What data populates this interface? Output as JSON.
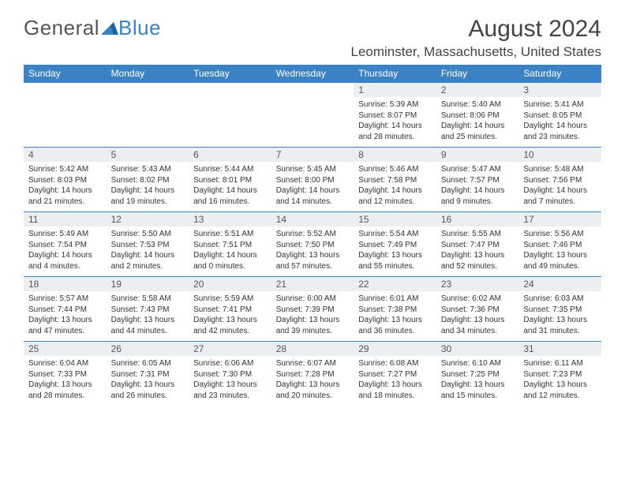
{
  "logo": {
    "text1": "General",
    "text2": "Blue"
  },
  "title": "August 2024",
  "location": "Leominster, Massachusetts, United States",
  "colors": {
    "header_bg": "#3b82c4",
    "header_text": "#ffffff",
    "daynum_bg": "#eceff1",
    "text": "#444444",
    "row_border": "#3b82c4"
  },
  "weekdays": [
    "Sunday",
    "Monday",
    "Tuesday",
    "Wednesday",
    "Thursday",
    "Friday",
    "Saturday"
  ],
  "weeks": [
    [
      null,
      null,
      null,
      null,
      {
        "n": "1",
        "sr": "5:39 AM",
        "ss": "8:07 PM",
        "dl": "14 hours and 28 minutes."
      },
      {
        "n": "2",
        "sr": "5:40 AM",
        "ss": "8:06 PM",
        "dl": "14 hours and 25 minutes."
      },
      {
        "n": "3",
        "sr": "5:41 AM",
        "ss": "8:05 PM",
        "dl": "14 hours and 23 minutes."
      }
    ],
    [
      {
        "n": "4",
        "sr": "5:42 AM",
        "ss": "8:03 PM",
        "dl": "14 hours and 21 minutes."
      },
      {
        "n": "5",
        "sr": "5:43 AM",
        "ss": "8:02 PM",
        "dl": "14 hours and 19 minutes."
      },
      {
        "n": "6",
        "sr": "5:44 AM",
        "ss": "8:01 PM",
        "dl": "14 hours and 16 minutes."
      },
      {
        "n": "7",
        "sr": "5:45 AM",
        "ss": "8:00 PM",
        "dl": "14 hours and 14 minutes."
      },
      {
        "n": "8",
        "sr": "5:46 AM",
        "ss": "7:58 PM",
        "dl": "14 hours and 12 minutes."
      },
      {
        "n": "9",
        "sr": "5:47 AM",
        "ss": "7:57 PM",
        "dl": "14 hours and 9 minutes."
      },
      {
        "n": "10",
        "sr": "5:48 AM",
        "ss": "7:56 PM",
        "dl": "14 hours and 7 minutes."
      }
    ],
    [
      {
        "n": "11",
        "sr": "5:49 AM",
        "ss": "7:54 PM",
        "dl": "14 hours and 4 minutes."
      },
      {
        "n": "12",
        "sr": "5:50 AM",
        "ss": "7:53 PM",
        "dl": "14 hours and 2 minutes."
      },
      {
        "n": "13",
        "sr": "5:51 AM",
        "ss": "7:51 PM",
        "dl": "14 hours and 0 minutes."
      },
      {
        "n": "14",
        "sr": "5:52 AM",
        "ss": "7:50 PM",
        "dl": "13 hours and 57 minutes."
      },
      {
        "n": "15",
        "sr": "5:54 AM",
        "ss": "7:49 PM",
        "dl": "13 hours and 55 minutes."
      },
      {
        "n": "16",
        "sr": "5:55 AM",
        "ss": "7:47 PM",
        "dl": "13 hours and 52 minutes."
      },
      {
        "n": "17",
        "sr": "5:56 AM",
        "ss": "7:46 PM",
        "dl": "13 hours and 49 minutes."
      }
    ],
    [
      {
        "n": "18",
        "sr": "5:57 AM",
        "ss": "7:44 PM",
        "dl": "13 hours and 47 minutes."
      },
      {
        "n": "19",
        "sr": "5:58 AM",
        "ss": "7:43 PM",
        "dl": "13 hours and 44 minutes."
      },
      {
        "n": "20",
        "sr": "5:59 AM",
        "ss": "7:41 PM",
        "dl": "13 hours and 42 minutes."
      },
      {
        "n": "21",
        "sr": "6:00 AM",
        "ss": "7:39 PM",
        "dl": "13 hours and 39 minutes."
      },
      {
        "n": "22",
        "sr": "6:01 AM",
        "ss": "7:38 PM",
        "dl": "13 hours and 36 minutes."
      },
      {
        "n": "23",
        "sr": "6:02 AM",
        "ss": "7:36 PM",
        "dl": "13 hours and 34 minutes."
      },
      {
        "n": "24",
        "sr": "6:03 AM",
        "ss": "7:35 PM",
        "dl": "13 hours and 31 minutes."
      }
    ],
    [
      {
        "n": "25",
        "sr": "6:04 AM",
        "ss": "7:33 PM",
        "dl": "13 hours and 28 minutes."
      },
      {
        "n": "26",
        "sr": "6:05 AM",
        "ss": "7:31 PM",
        "dl": "13 hours and 26 minutes."
      },
      {
        "n": "27",
        "sr": "6:06 AM",
        "ss": "7:30 PM",
        "dl": "13 hours and 23 minutes."
      },
      {
        "n": "28",
        "sr": "6:07 AM",
        "ss": "7:28 PM",
        "dl": "13 hours and 20 minutes."
      },
      {
        "n": "29",
        "sr": "6:08 AM",
        "ss": "7:27 PM",
        "dl": "13 hours and 18 minutes."
      },
      {
        "n": "30",
        "sr": "6:10 AM",
        "ss": "7:25 PM",
        "dl": "13 hours and 15 minutes."
      },
      {
        "n": "31",
        "sr": "6:11 AM",
        "ss": "7:23 PM",
        "dl": "13 hours and 12 minutes."
      }
    ]
  ],
  "labels": {
    "sunrise": "Sunrise: ",
    "sunset": "Sunset: ",
    "daylight": "Daylight: "
  }
}
